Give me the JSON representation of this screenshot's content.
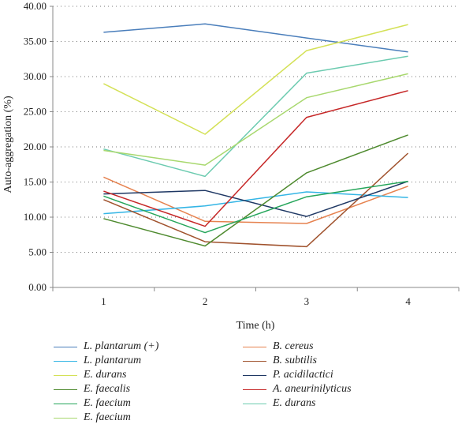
{
  "chart_data": {
    "type": "line",
    "xlabel": "Time (h)",
    "ylabel": "Auto-aggregation (%)",
    "x": [
      1,
      2,
      3,
      4
    ],
    "x_tick_labels": [
      "1",
      "2",
      "3",
      "4"
    ],
    "ylim": [
      0,
      40
    ],
    "y_tick_labels": [
      "0.00",
      "5.00",
      "10.00",
      "15.00",
      "20.00",
      "25.00",
      "30.00",
      "35.00",
      "40.00"
    ],
    "grid": "horizontal dotted",
    "legend_position": "bottom",
    "series": [
      {
        "name": "L. plantarum (+)",
        "color": "#4a7ebb",
        "values": [
          36.3,
          37.5,
          35.5,
          33.5
        ]
      },
      {
        "name": "B. cereus",
        "color": "#e6824f",
        "values": [
          15.7,
          9.4,
          9.1,
          14.4
        ]
      },
      {
        "name": "L. plantarum",
        "color": "#33b5e5",
        "values": [
          10.5,
          11.6,
          13.6,
          12.8
        ]
      },
      {
        "name": "B. subtilis",
        "color": "#a0522d",
        "values": [
          12.5,
          6.5,
          5.8,
          19.1
        ]
      },
      {
        "name": "E. durans",
        "color": "#d4e157",
        "values": [
          29.0,
          21.8,
          33.7,
          37.4
        ]
      },
      {
        "name": "P. acidilactici",
        "color": "#1f3864",
        "values": [
          13.3,
          13.8,
          10.1,
          15.1
        ]
      },
      {
        "name": "E. faecalis",
        "color": "#4e8a2e",
        "values": [
          9.8,
          5.9,
          16.3,
          21.7
        ]
      },
      {
        "name": "A. aneurinilyticus",
        "color": "#c62828",
        "values": [
          13.7,
          8.7,
          24.2,
          28.0
        ]
      },
      {
        "name": "E. faecium",
        "color": "#26a65b",
        "values": [
          13.0,
          7.8,
          12.9,
          15.1
        ]
      },
      {
        "name": "E. durans",
        "color": "#6ccbb0",
        "values": [
          19.7,
          15.8,
          30.5,
          32.9
        ]
      },
      {
        "name": "E. faecium",
        "color": "#a8d86e",
        "values": [
          19.5,
          17.4,
          27.0,
          30.4
        ]
      }
    ]
  }
}
